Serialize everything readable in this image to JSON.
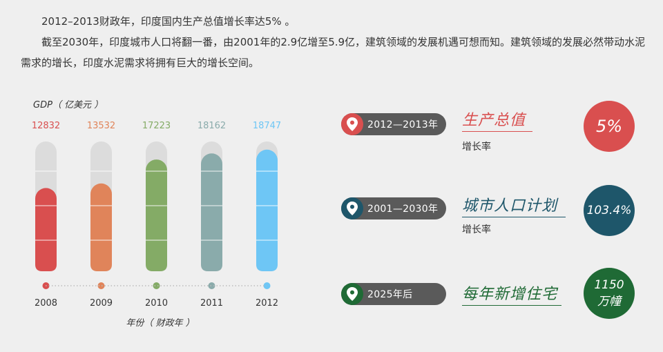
{
  "intro": {
    "line1": "2012–2013财政年，印度国内生产总值增长率达5%  。",
    "line2": "截至2030年，印度城市人口将翻一番，由2001年的2.9亿增至5.9亿，建筑领域的发展机遇可想而知。建筑领域的发展必然带动水泥需求的增长，印度水泥需求将拥有巨大的增长空间。"
  },
  "chart_data": {
    "type": "bar",
    "ylabel": "GDP（ 亿美元 ）",
    "xlabel": "年份（ 财政年 ）",
    "categories": [
      "2008",
      "2009",
      "2010",
      "2011",
      "2012"
    ],
    "values": [
      12832,
      13532,
      17223,
      18162,
      18747
    ],
    "value_labels": [
      "12832",
      "13532",
      "17223",
      "18162",
      "18747"
    ],
    "colors": [
      "#d94f4f",
      "#e0845a",
      "#84ab66",
      "#8aabab",
      "#6ec6f5"
    ],
    "track_color": "#dcdcdc",
    "ylim": [
      0,
      20000
    ]
  },
  "stats": [
    {
      "period": "2012—2013年",
      "title": "生产总值",
      "subtitle": "增长率",
      "value_line1": "5%",
      "value_line2": "",
      "color": "#d94f4f"
    },
    {
      "period": "2001—2030年",
      "title": "城市人口计划",
      "subtitle": "增长率",
      "value_line1": "103.4%",
      "value_line2": "",
      "color": "#1e566a"
    },
    {
      "period": "2025年后",
      "title": "每年新增住宅",
      "subtitle": "",
      "value_line1": "1150",
      "value_line2": "万幢",
      "color": "#1f6a35"
    }
  ],
  "icons": {
    "pin": "map-pin-icon"
  }
}
